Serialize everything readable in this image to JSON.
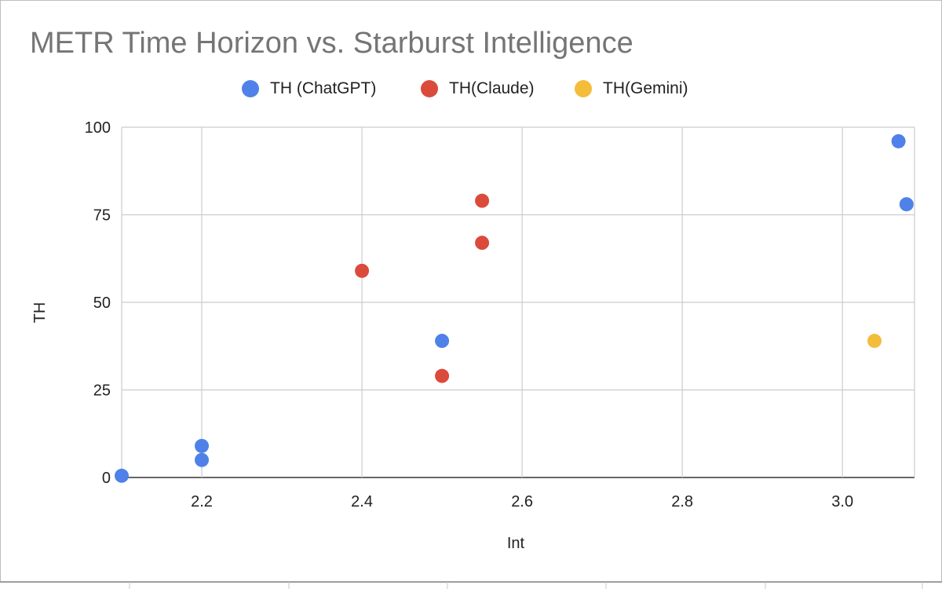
{
  "chart_data": {
    "type": "scatter",
    "title": "METR Time Horizon vs. Starburst Intelligence",
    "xlabel": "Int",
    "ylabel": "TH",
    "xlim": [
      2.1,
      3.09
    ],
    "ylim": [
      0,
      100
    ],
    "x_ticks": [
      "2.2",
      "2.4",
      "2.6",
      "2.8",
      "3.0"
    ],
    "x_tick_values": [
      2.2,
      2.4,
      2.6,
      2.8,
      3.0
    ],
    "y_ticks": [
      "0",
      "25",
      "50",
      "75",
      "100"
    ],
    "y_tick_values": [
      0,
      25,
      50,
      75,
      100
    ],
    "grid": true,
    "legend_position": "top",
    "series": [
      {
        "name": "TH (ChatGPT)",
        "color": "#4f81e8",
        "points": [
          {
            "x": 2.1,
            "y": 0.5
          },
          {
            "x": 2.2,
            "y": 5
          },
          {
            "x": 2.2,
            "y": 9
          },
          {
            "x": 2.5,
            "y": 39
          },
          {
            "x": 3.07,
            "y": 96
          },
          {
            "x": 3.08,
            "y": 78
          }
        ]
      },
      {
        "name": "TH(Claude)",
        "color": "#db4b3c",
        "points": [
          {
            "x": 2.4,
            "y": 59
          },
          {
            "x": 2.5,
            "y": 29
          },
          {
            "x": 2.55,
            "y": 67
          },
          {
            "x": 2.55,
            "y": 79
          }
        ]
      },
      {
        "name": "TH(Gemini)",
        "color": "#f3bd3a",
        "points": [
          {
            "x": 3.04,
            "y": 39
          }
        ]
      }
    ]
  }
}
